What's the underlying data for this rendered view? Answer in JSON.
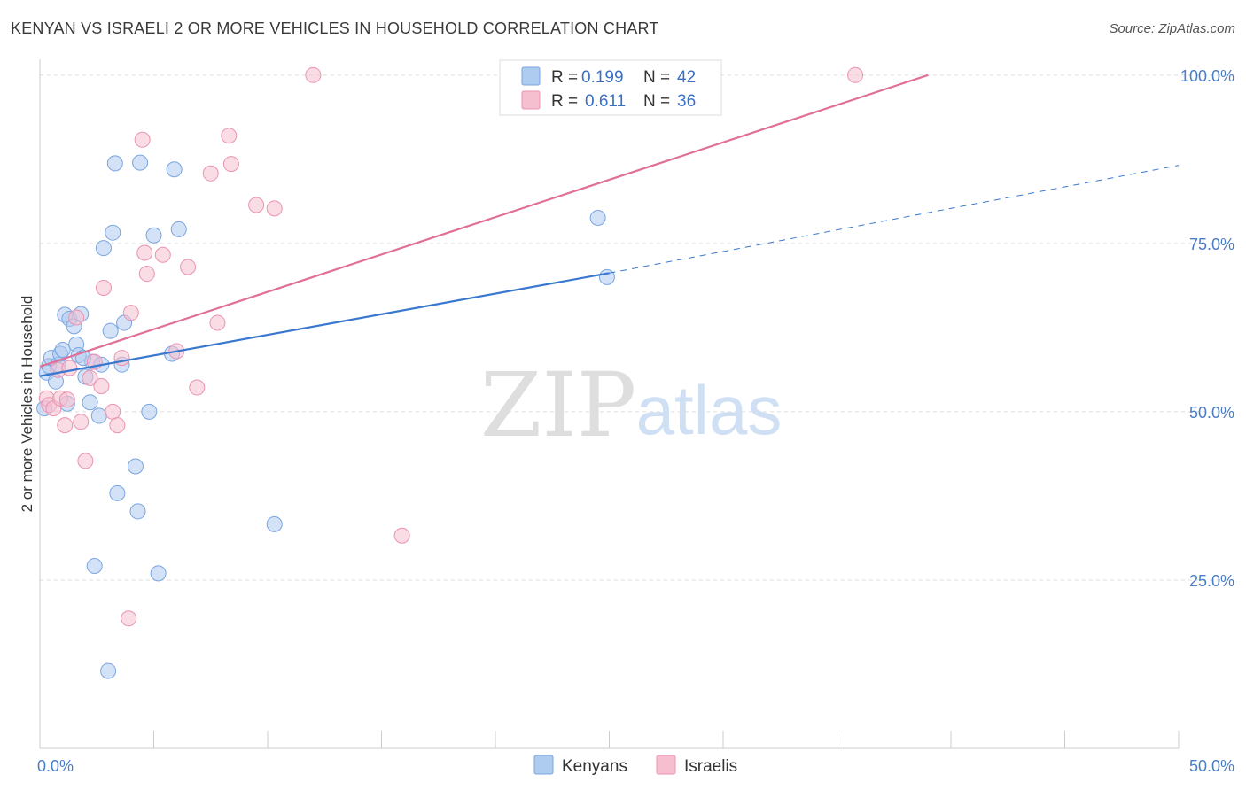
{
  "header": {
    "title": "KENYAN VS ISRAELI 2 OR MORE VEHICLES IN HOUSEHOLD CORRELATION CHART",
    "source": "Source: ZipAtlas.com"
  },
  "watermark": {
    "zip": "ZIP",
    "atlas": "atlas"
  },
  "colors": {
    "kenyan_fill": "#aecbf0",
    "kenyan_stroke": "#7aa5e0",
    "kenyan_line": "#3a78d0",
    "israeli_fill": "#f6bfd0",
    "israeli_stroke": "#eb93b0",
    "israeli_line": "#e07098",
    "axis_tick_text": "#4a7cc7",
    "grid": "#dddddd"
  },
  "legend": {
    "r_label": "R =",
    "n_label": "N =",
    "rows": [
      {
        "series": "Kenyans",
        "r": "0.199",
        "n": "42"
      },
      {
        "series": "Israelis",
        "r": "0.611",
        "n": "36"
      }
    ]
  },
  "chart_data": {
    "type": "scatter",
    "title": "KENYAN VS ISRAELI 2 OR MORE VEHICLES IN HOUSEHOLD CORRELATION CHART",
    "xlabel": "",
    "ylabel": "2 or more Vehicles in Household",
    "xlim": [
      0,
      50
    ],
    "ylim": [
      0,
      103
    ],
    "x_tick_labels": [
      "0.0%",
      "50.0%"
    ],
    "y_ticks": [
      25,
      50,
      75,
      100
    ],
    "y_tick_labels": [
      "25.0%",
      "50.0%",
      "75.0%",
      "100.0%"
    ],
    "grid": true,
    "series": [
      {
        "name": "Kenyans",
        "points": [
          [
            0.2,
            50.5
          ],
          [
            0.3,
            55.8
          ],
          [
            0.4,
            56.8
          ],
          [
            0.5,
            58.0
          ],
          [
            0.7,
            54.5
          ],
          [
            0.8,
            57.0
          ],
          [
            0.9,
            58.6
          ],
          [
            1.0,
            59.2
          ],
          [
            1.1,
            64.4
          ],
          [
            1.2,
            51.2
          ],
          [
            1.3,
            63.8
          ],
          [
            1.5,
            62.7
          ],
          [
            1.6,
            60.0
          ],
          [
            1.7,
            58.4
          ],
          [
            1.8,
            64.5
          ],
          [
            2.0,
            55.2
          ],
          [
            2.2,
            51.4
          ],
          [
            2.3,
            57.4
          ],
          [
            2.4,
            27.1
          ],
          [
            2.6,
            49.4
          ],
          [
            2.7,
            57.0
          ],
          [
            2.8,
            74.3
          ],
          [
            3.1,
            62.0
          ],
          [
            3.2,
            76.6
          ],
          [
            3.3,
            86.9
          ],
          [
            3.4,
            37.9
          ],
          [
            3.6,
            57.0
          ],
          [
            3.7,
            63.2
          ],
          [
            4.2,
            41.9
          ],
          [
            4.3,
            35.2
          ],
          [
            4.4,
            87.0
          ],
          [
            4.8,
            50.0
          ],
          [
            5.0,
            76.2
          ],
          [
            5.2,
            26.0
          ],
          [
            5.8,
            58.6
          ],
          [
            5.9,
            86.0
          ],
          [
            6.1,
            77.1
          ],
          [
            10.3,
            33.3
          ],
          [
            24.5,
            78.8
          ],
          [
            24.9,
            70.0
          ],
          [
            3.0,
            11.5
          ],
          [
            1.9,
            58.0
          ]
        ],
        "trend": {
          "x_start": 0,
          "y_start": 55.3,
          "x_solid_end": 25,
          "y_solid_end": 70.6,
          "x_dash_end": 50,
          "y_dash_end": 86.6
        }
      },
      {
        "name": "Israelis",
        "points": [
          [
            0.3,
            52.0
          ],
          [
            0.4,
            51.0
          ],
          [
            0.6,
            50.5
          ],
          [
            0.8,
            56.2
          ],
          [
            0.9,
            52.0
          ],
          [
            1.1,
            48.0
          ],
          [
            1.2,
            51.8
          ],
          [
            1.3,
            56.5
          ],
          [
            1.6,
            64.0
          ],
          [
            1.8,
            48.5
          ],
          [
            2.0,
            42.7
          ],
          [
            2.2,
            55.0
          ],
          [
            2.4,
            57.4
          ],
          [
            2.7,
            53.8
          ],
          [
            2.8,
            68.4
          ],
          [
            3.2,
            50.0
          ],
          [
            3.4,
            48.0
          ],
          [
            3.6,
            58.0
          ],
          [
            3.9,
            19.3
          ],
          [
            4.0,
            64.7
          ],
          [
            4.5,
            90.4
          ],
          [
            4.6,
            73.6
          ],
          [
            4.7,
            70.5
          ],
          [
            5.4,
            73.3
          ],
          [
            6.0,
            59.0
          ],
          [
            6.5,
            71.5
          ],
          [
            6.9,
            53.6
          ],
          [
            7.5,
            85.4
          ],
          [
            7.8,
            63.2
          ],
          [
            8.3,
            91.0
          ],
          [
            8.4,
            86.8
          ],
          [
            9.5,
            80.7
          ],
          [
            10.3,
            80.2
          ],
          [
            12.0,
            100.0
          ],
          [
            15.9,
            31.6
          ],
          [
            35.8,
            100.0
          ]
        ],
        "trend": {
          "x_start": 0,
          "y_start": 56.7,
          "x_solid_end": 39,
          "y_solid_end": 100.0
        }
      }
    ]
  }
}
